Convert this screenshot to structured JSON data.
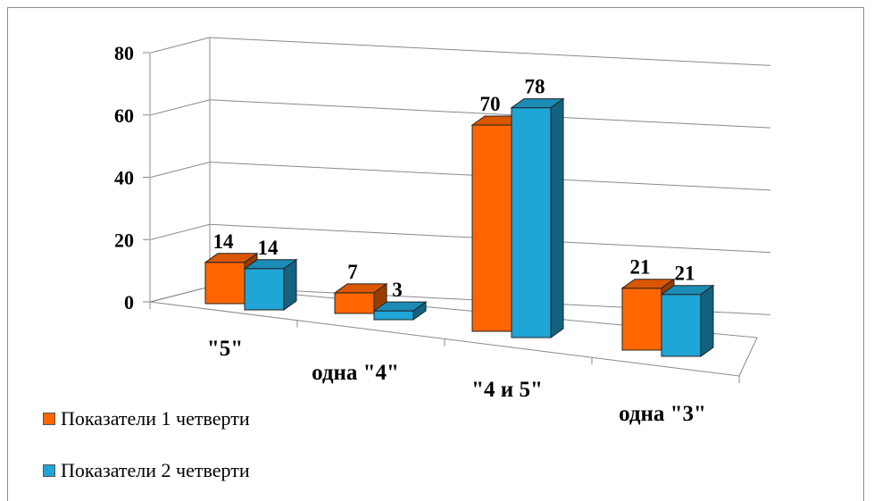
{
  "chart_data": {
    "type": "bar",
    "categories": [
      "\"5\"",
      "одна \"4\"",
      "\"4 и 5\"",
      "одна \"3\""
    ],
    "series": [
      {
        "name": "Показатели 1 четверти",
        "values": [
          14,
          7,
          70,
          21
        ],
        "color": "#ff6600"
      },
      {
        "name": "Показатели 2 четверти",
        "values": [
          14,
          3,
          78,
          21
        ],
        "color": "#1fa5d6"
      }
    ],
    "yticks": [
      "0",
      "20",
      "40",
      "60",
      "80"
    ],
    "ylim": [
      0,
      80
    ],
    "grid": true,
    "legend_position": "bottom-left",
    "style": "3d-column"
  }
}
